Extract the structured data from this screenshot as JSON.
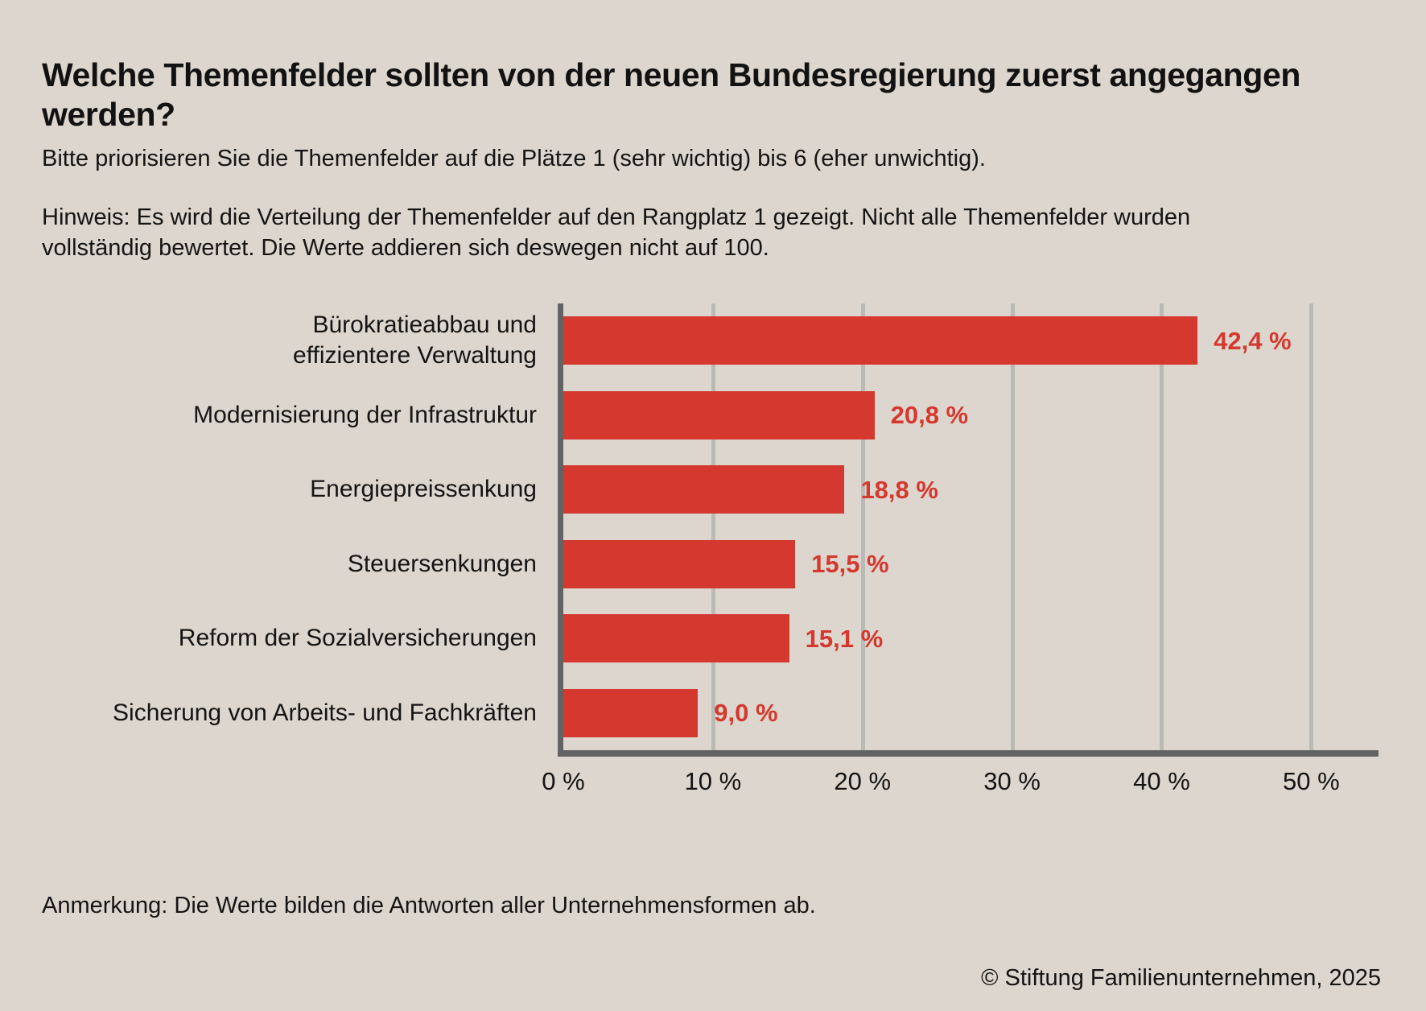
{
  "header": {
    "title_lines": [
      "Welche Themenfelder sollten von der neuen Bundesregierung zuerst angegangen",
      "werden?"
    ],
    "subtitle": "Bitte priorisieren Sie die Themenfelder auf die Plätze 1 (sehr wichtig) bis 6 (eher unwichtig).",
    "note_lines": [
      "Hinweis: Es wird die Verteilung der Themenfelder auf den Rangplatz 1 gezeigt. Nicht alle Themenfelder wurden",
      "vollständig bewertet. Die Werte addieren sich deswegen nicht auf 100."
    ]
  },
  "chart_data": {
    "type": "bar",
    "orientation": "horizontal",
    "title": "Welche Themenfelder sollten von der neuen Bundesregierung zuerst angegangen werden?",
    "subtitle": "Bitte priorisieren Sie die Themenfelder auf die Plätze 1 (sehr wichtig) bis 6 (eher unwichtig).",
    "note": "Hinweis: Es wird die Verteilung der Themenfelder auf den Rangplatz 1 gezeigt. Nicht alle Themenfelder wurden vollständig bewertet. Die Werte addieren sich deswegen nicht auf 100.",
    "categories": [
      "Bürokratieabbau und effizientere Verwaltung",
      "Modernisierung der Infrastruktur",
      "Energiepreissenkung",
      "Steuersenkungen",
      "Reform der Sozialversicherungen",
      "Sicherung von Arbeits- und Fachkräften"
    ],
    "category_lines": [
      [
        "Bürokratieabbau und",
        "effizientere Verwaltung"
      ],
      [
        "Modernisierung der Infrastruktur"
      ],
      [
        "Energiepreissenkung"
      ],
      [
        "Steuersenkungen"
      ],
      [
        "Reform der Sozialversicherungen"
      ],
      [
        "Sicherung von Arbeits- und Fachkräften"
      ]
    ],
    "values": [
      42.4,
      20.8,
      18.8,
      15.5,
      15.1,
      9.0
    ],
    "value_labels": [
      "42,4 %",
      "20,8 %",
      "18,8 %",
      "15,5 %",
      "15,1 %",
      "9,0 %"
    ],
    "xlabel": "",
    "ylabel": "",
    "xlim": [
      0,
      54.5
    ],
    "xticks": [
      0,
      10,
      20,
      30,
      40,
      50
    ],
    "xtick_labels": [
      "0 %",
      "10 %",
      "20 %",
      "30 %",
      "40 %",
      "50 %"
    ],
    "grid": true,
    "legend": false,
    "colors": {
      "bar": "#D4382E",
      "value_label": "#D4382E",
      "axis": "#636363",
      "gridline": "#B9BAB6",
      "background": "#DDD6CE",
      "text": "#141414"
    }
  },
  "footer": {
    "annotation": "Anmerkung: Die Werte bilden die Antworten aller Unternehmensformen ab.",
    "source": "© Stiftung Familienunternehmen, 2025"
  }
}
